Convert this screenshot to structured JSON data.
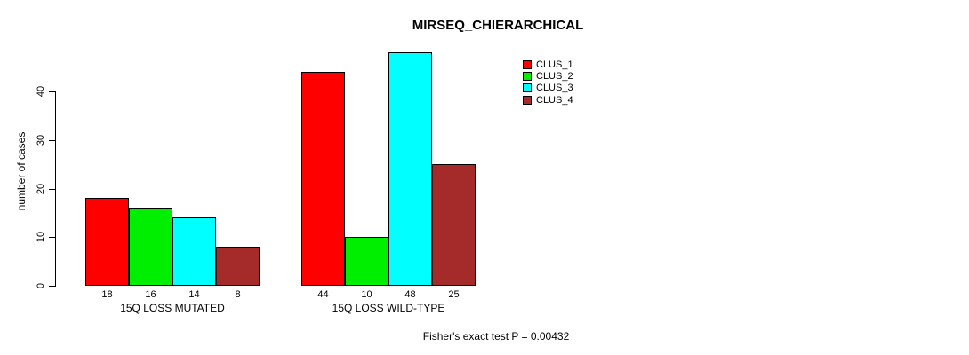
{
  "title": "MIRSEQ_CHIERARCHICAL",
  "footer": "Fisher's exact test P = 0.00432",
  "y_axis": {
    "label": "number of cases",
    "ticks": [
      0,
      10,
      20,
      30,
      40
    ]
  },
  "chart_data": {
    "type": "bar",
    "title": "MIRSEQ_CHIERARCHICAL",
    "xlabel": "",
    "ylabel": "number of cases",
    "categories": [
      "15Q LOSS MUTATED",
      "15Q LOSS WILD-TYPE"
    ],
    "series": [
      {
        "name": "CLUS_1",
        "color": "#FF0000",
        "values": [
          18,
          44
        ]
      },
      {
        "name": "CLUS_2",
        "color": "#00EE00",
        "values": [
          16,
          10
        ]
      },
      {
        "name": "CLUS_3",
        "color": "#00FFFF",
        "values": [
          14,
          48
        ]
      },
      {
        "name": "CLUS_4",
        "color": "#A52A2A",
        "values": [
          8,
          25
        ]
      }
    ],
    "ylim": [
      0,
      48
    ],
    "yticks": [
      0,
      10,
      20,
      30,
      40
    ],
    "grid": false,
    "bar_value_labels": true,
    "legend_position": "top-right",
    "annotation": "Fisher's exact test P = 0.00432"
  }
}
